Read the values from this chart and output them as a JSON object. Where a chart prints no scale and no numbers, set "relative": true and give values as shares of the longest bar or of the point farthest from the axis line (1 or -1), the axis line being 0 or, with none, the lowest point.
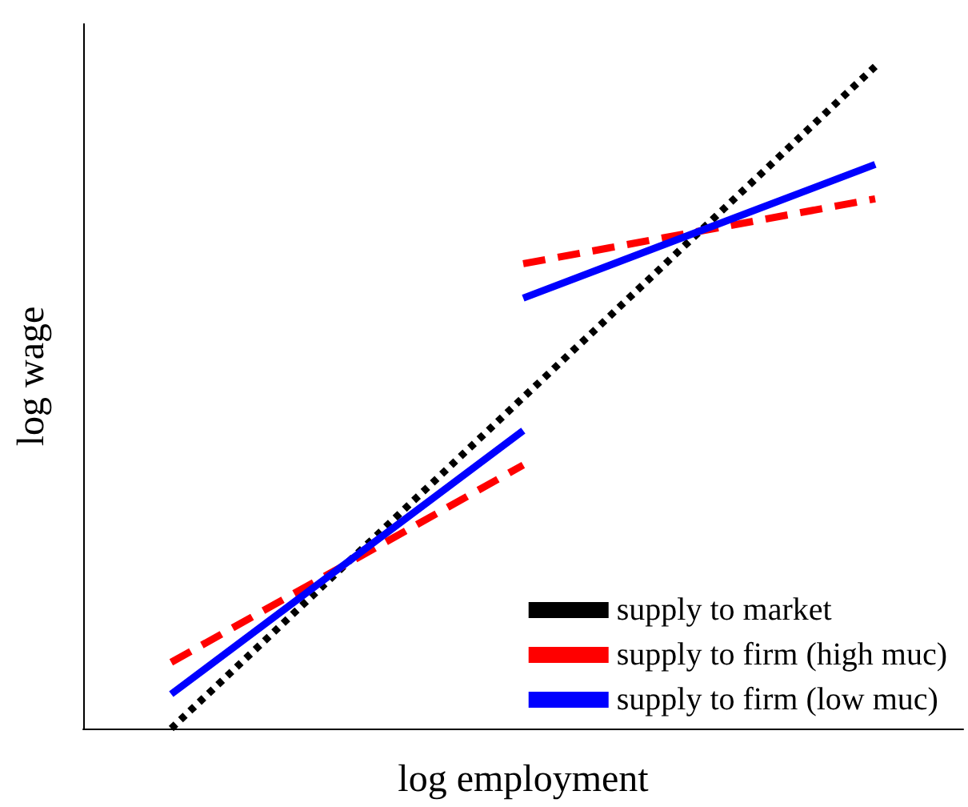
{
  "chart_data": {
    "type": "line",
    "relative": true,
    "xlabel": "log employment",
    "ylabel": "log wage",
    "legend": "bottom right",
    "grid": false,
    "marker": "none",
    "line_style": "solid",
    "categories": [
      null,
      null,
      null,
      null,
      null,
      null,
      null,
      null,
      null,
      null,
      null
    ],
    "series": [
      {
        "name": "supply to market",
        "color": "#000000",
        "line_style": "dotted",
        "values": [
          null,
          0,
          null,
          null,
          null,
          null,
          null,
          null,
          null,
          1,
          null
        ]
      },
      {
        "name": "supply to firm (high muc)",
        "color": "#ff0000",
        "line_style": "dashed",
        "values": [
          null,
          0.1,
          null,
          null,
          null,
          0.398,
          null,
          null,
          null,
          null,
          null
        ]
      },
      {
        "color": "#ff0000",
        "line_style": "dashed",
        "values": [
          null,
          null,
          null,
          null,
          null,
          0.702,
          null,
          null,
          null,
          0.8,
          null
        ]
      },
      {
        "name": "supply to firm (low muc)",
        "color": "#0000ff",
        "values": [
          null,
          0.052,
          null,
          null,
          null,
          0.45,
          null,
          null,
          null,
          null,
          null
        ]
      },
      {
        "color": "#0000ff",
        "values": [
          null,
          null,
          null,
          null,
          null,
          0.65,
          null,
          null,
          null,
          0.852,
          null
        ]
      }
    ]
  }
}
